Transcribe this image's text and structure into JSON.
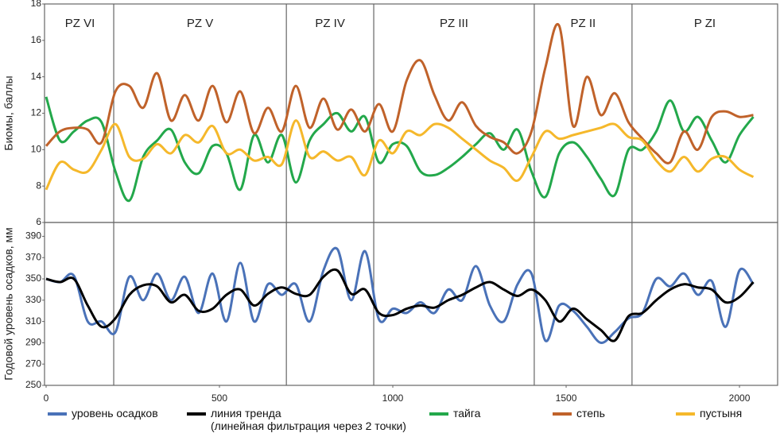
{
  "chart_data": [
    {
      "type": "line",
      "ylabel": "Биомы, баллы",
      "x": [
        0,
        40,
        80,
        120,
        160,
        200,
        240,
        280,
        320,
        360,
        400,
        440,
        480,
        520,
        560,
        600,
        640,
        680,
        720,
        760,
        800,
        840,
        880,
        920,
        960,
        1000,
        1040,
        1080,
        1120,
        1160,
        1200,
        1240,
        1280,
        1320,
        1360,
        1400,
        1440,
        1480,
        1520,
        1560,
        1600,
        1640,
        1680,
        1720,
        1760,
        1800,
        1840,
        1880,
        1920,
        1960,
        2000,
        2040
      ],
      "xlim": [
        0,
        2110
      ],
      "ylim": [
        6,
        18
      ],
      "yticks": [
        6,
        8,
        10,
        12,
        14,
        16,
        18
      ],
      "zones": {
        "labels": [
          "PZ VI",
          "PZ V",
          "PZ IV",
          "PZ III",
          "PZ II",
          "P ZI"
        ],
        "boundaries": [
          195,
          693,
          945,
          1408,
          1690
        ]
      },
      "series": [
        {
          "name": "тайга",
          "color": "#23a84b",
          "values": [
            12.9,
            10.5,
            11.0,
            11.6,
            11.5,
            8.8,
            7.2,
            9.6,
            10.5,
            11.1,
            9.3,
            8.7,
            10.2,
            9.8,
            7.8,
            10.8,
            9.3,
            10.8,
            8.2,
            10.5,
            11.4,
            12.0,
            11.0,
            11.8,
            9.3,
            10.3,
            10.2,
            8.8,
            8.6,
            9.0,
            9.6,
            10.3,
            10.9,
            10.0,
            11.1,
            8.8,
            7.4,
            9.8,
            10.4,
            9.6,
            8.4,
            7.5,
            10.0,
            10.0,
            11.0,
            12.7,
            11.0,
            11.8,
            10.5,
            9.3,
            10.8,
            11.8
          ]
        },
        {
          "name": "степь",
          "color": "#c0622a",
          "values": [
            10.2,
            11.0,
            11.2,
            11.1,
            10.4,
            13.2,
            13.5,
            12.3,
            14.2,
            11.6,
            13.0,
            11.6,
            13.5,
            11.5,
            13.2,
            10.9,
            12.3,
            11.0,
            13.5,
            11.2,
            12.8,
            11.1,
            12.2,
            11.0,
            12.5,
            11.0,
            13.8,
            14.9,
            13.0,
            11.6,
            12.6,
            11.3,
            10.7,
            10.4,
            9.8,
            11.0,
            14.5,
            16.8,
            11.3,
            14.0,
            11.9,
            13.1,
            11.5,
            10.6,
            9.8,
            9.3,
            11.0,
            10.0,
            11.8,
            12.1,
            11.8,
            11.9
          ]
        },
        {
          "name": "пустыня",
          "color": "#f5b82b",
          "values": [
            7.8,
            9.3,
            8.9,
            8.8,
            10.0,
            11.4,
            9.6,
            9.5,
            10.3,
            9.8,
            10.8,
            10.4,
            11.3,
            9.8,
            10.0,
            9.4,
            9.6,
            9.2,
            11.6,
            9.6,
            9.9,
            9.4,
            9.6,
            8.6,
            10.5,
            9.8,
            11.0,
            10.8,
            11.4,
            11.2,
            10.6,
            10.0,
            9.4,
            9.0,
            8.3,
            9.6,
            11.0,
            10.6,
            10.8,
            11.0,
            11.2,
            11.4,
            10.7,
            10.5,
            9.4,
            8.8,
            9.6,
            8.8,
            9.5,
            9.6,
            8.9,
            8.5
          ]
        }
      ]
    },
    {
      "type": "line",
      "ylabel": "Годовой уровень осадков, мм",
      "x": [
        0,
        40,
        80,
        120,
        160,
        200,
        240,
        280,
        320,
        360,
        400,
        440,
        480,
        520,
        560,
        600,
        640,
        680,
        720,
        760,
        800,
        840,
        880,
        920,
        960,
        1000,
        1040,
        1080,
        1120,
        1160,
        1200,
        1240,
        1280,
        1320,
        1360,
        1400,
        1440,
        1480,
        1520,
        1560,
        1600,
        1640,
        1680,
        1720,
        1760,
        1800,
        1840,
        1880,
        1920,
        1960,
        2000,
        2040
      ],
      "xlim": [
        0,
        2110
      ],
      "xticks": [
        0,
        500,
        1000,
        1500,
        2000
      ],
      "ylim": [
        250,
        403
      ],
      "yticks": [
        250,
        270,
        290,
        310,
        330,
        350,
        370,
        390
      ],
      "series": [
        {
          "name": "уровень осадков",
          "color": "#4a72b8",
          "values": [
            350,
            347,
            353,
            310,
            310,
            300,
            352,
            330,
            355,
            330,
            352,
            318,
            355,
            310,
            365,
            310,
            345,
            335,
            345,
            310,
            358,
            378,
            330,
            376,
            312,
            322,
            318,
            328,
            318,
            340,
            330,
            362,
            325,
            310,
            345,
            355,
            292,
            325,
            320,
            305,
            290,
            300,
            313,
            318,
            350,
            343,
            355,
            335,
            348,
            305,
            358,
            345
          ]
        },
        {
          "name": "линия тренда\n(линейная фильтрация через 2 точки)",
          "color": "#000000",
          "values": [
            350,
            347,
            350,
            325,
            305,
            313,
            335,
            344,
            343,
            328,
            335,
            320,
            322,
            335,
            340,
            325,
            336,
            342,
            336,
            335,
            352,
            358,
            336,
            340,
            318,
            316,
            322,
            325,
            323,
            330,
            335,
            342,
            347,
            340,
            334,
            340,
            330,
            310,
            322,
            312,
            302,
            292,
            315,
            318,
            330,
            340,
            345,
            342,
            340,
            328,
            333,
            347
          ]
        }
      ]
    }
  ]
}
